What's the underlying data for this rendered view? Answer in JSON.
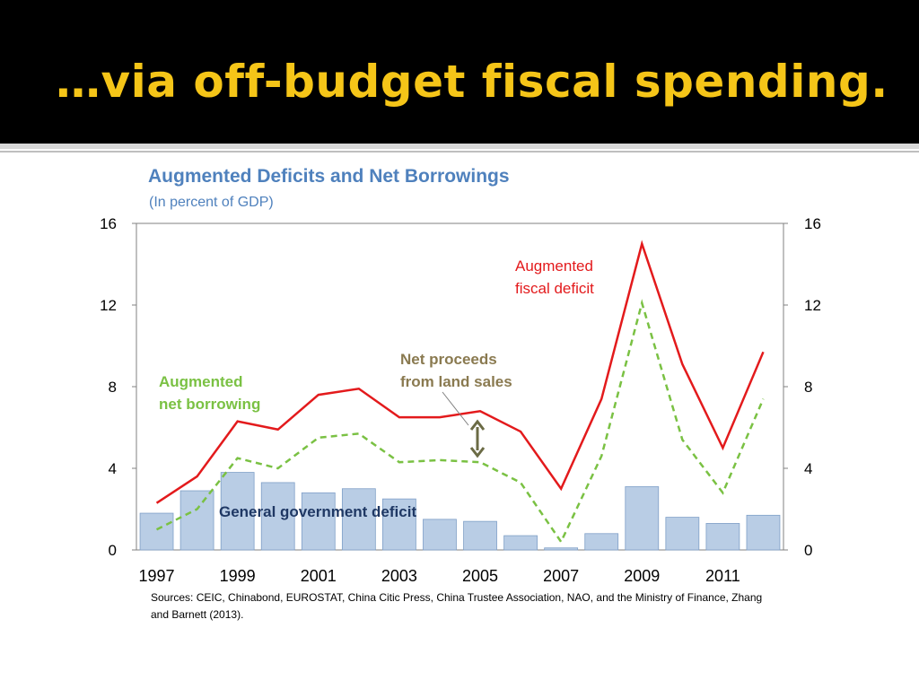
{
  "slide": {
    "title": "…via off-budget fiscal spending."
  },
  "chart_data": {
    "type": "bar",
    "title": "Augmented Deficits and Net Borrowings",
    "subtitle": "(In percent of GDP)",
    "x": [
      1997,
      1998,
      1999,
      2000,
      2001,
      2002,
      2003,
      2004,
      2005,
      2006,
      2007,
      2008,
      2009,
      2010,
      2011,
      2012
    ],
    "x_tick_labels": [
      "1997",
      "1999",
      "2001",
      "2003",
      "2005",
      "2007",
      "2009",
      "2011"
    ],
    "ylim": [
      0,
      16
    ],
    "y_ticks_left": [
      "0",
      "4",
      "8",
      "12",
      "16"
    ],
    "y_ticks_right": [
      "0",
      "4",
      "8",
      "12",
      "16"
    ],
    "grid": false,
    "series": [
      {
        "name": "General government deficit",
        "kind": "bar",
        "color": "#b9cde5",
        "values": [
          1.8,
          2.9,
          3.8,
          3.3,
          2.8,
          3.0,
          2.5,
          1.5,
          1.4,
          0.7,
          0.1,
          0.8,
          3.1,
          1.6,
          1.3,
          1.7
        ]
      },
      {
        "name": "Augmented fiscal deficit",
        "kind": "line",
        "color": "#e31a1c",
        "values": [
          2.3,
          3.6,
          6.3,
          5.9,
          7.6,
          7.9,
          6.5,
          6.5,
          6.8,
          5.8,
          3.0,
          7.4,
          15.0,
          9.1,
          5.0,
          9.7
        ]
      },
      {
        "name": "Augmented net borrowing",
        "kind": "dashed-line",
        "color": "#7ac143",
        "values": [
          1.0,
          2.0,
          4.5,
          4.0,
          5.5,
          5.7,
          4.3,
          4.4,
          4.3,
          3.3,
          0.4,
          4.6,
          12.1,
          5.4,
          2.8,
          7.4
        ]
      }
    ],
    "annotations": [
      {
        "id": "aug-fiscal",
        "lines": [
          "Augmented",
          "fiscal deficit"
        ],
        "color": "#e31a1c"
      },
      {
        "id": "aug-net",
        "lines": [
          "Augmented",
          "net borrowing"
        ],
        "color": "#7ac143"
      },
      {
        "id": "land-sales",
        "lines": [
          "Net proceeds",
          "from land sales"
        ],
        "color": "#8a7a50"
      },
      {
        "id": "gov-deficit",
        "lines": [
          "General government deficit"
        ],
        "color": "#1f3864"
      }
    ],
    "colors": {
      "axis": "#808080",
      "arrow": "#6b6b45",
      "title": "#4f81bd"
    }
  },
  "source": "Sources: CEIC, Chinabond, EUROSTAT, China Citic Press, China Trustee Association, NAO, and the Ministry of Finance, Zhang and Barnett (2013)."
}
